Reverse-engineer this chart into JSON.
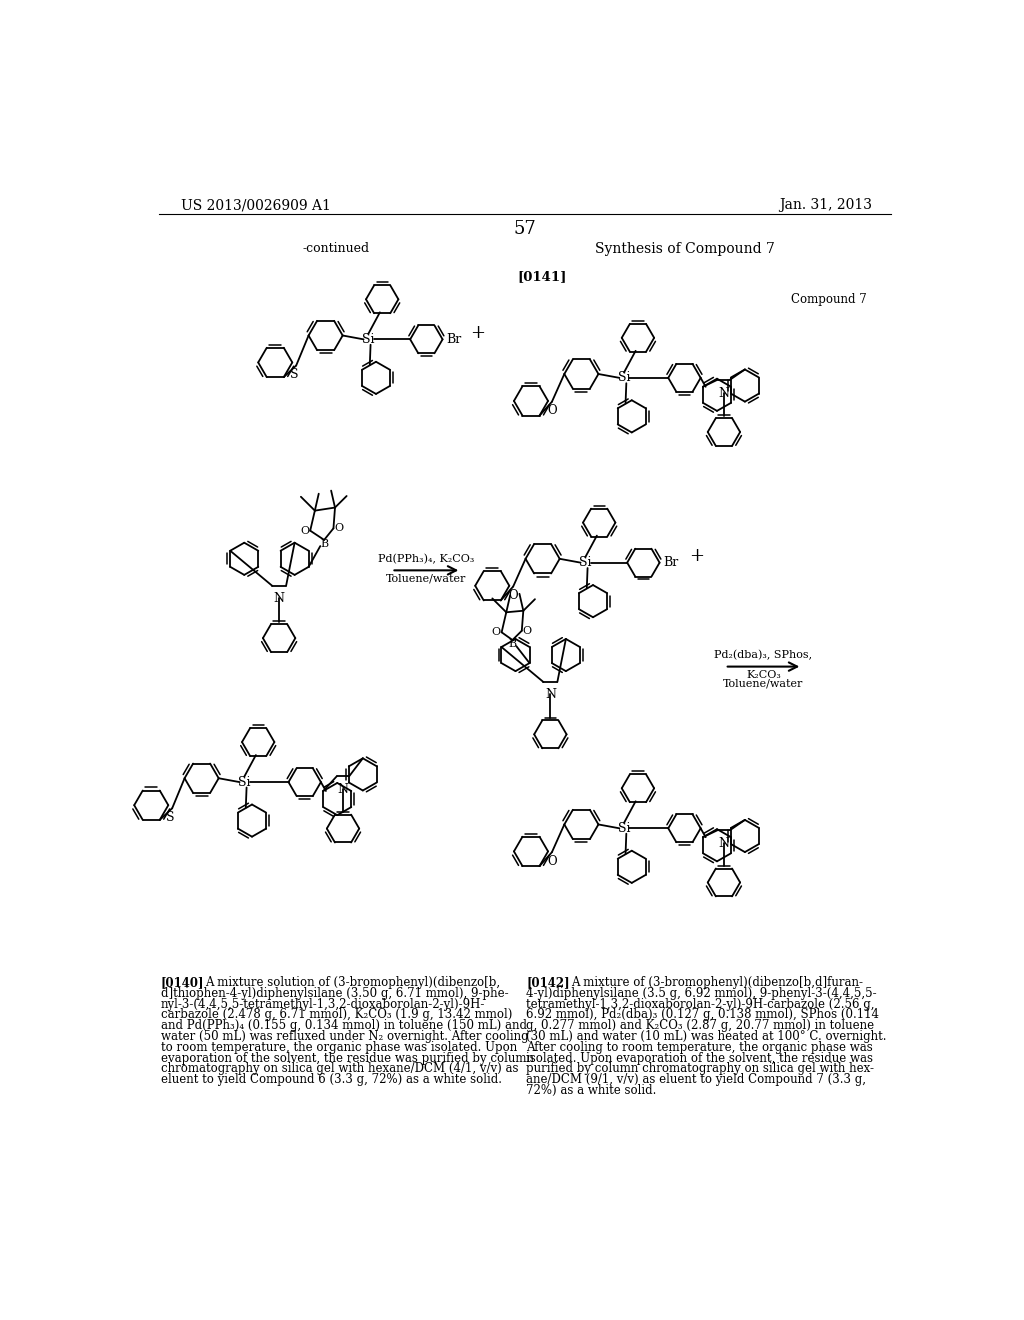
{
  "page_number": "57",
  "patent_number": "US 2013/0026909 A1",
  "patent_date": "Jan. 31, 2013",
  "background_color": "#ffffff",
  "continued_label": "-continued",
  "synthesis_title": "Synthesis of Compound 7",
  "compound7_label": "Compound 7",
  "lbl_0141": "[0141]",
  "lbl_0140": "[0140]",
  "lbl_0142": "[0142]",
  "arrow_left_line1": "Pd(PPh₃)₄, K₂CO₃",
  "arrow_left_line2": "Toluene/water",
  "arrow_right_line1": "Pd₂(dba)₃, SPhos,",
  "arrow_right_line2": "K₂CO₃",
  "arrow_right_line3": "Toluene/water",
  "para0140": "[0140]   A mixture solution of (3-bromophenyl)(dibenzo[b,d]thiophen-4-yl)diphenylsilane (3.50 g, 6.71 mmol), 9-phenyl-3-(4,4,5,5-tetramethyl-1,3,2-dioxaborolan-2-yl)-9H-carbazole (2.478 g, 6.71 mmol), K₂CO₃ (1.9 g, 13.42 mmol) and Pd(PPh₃)₄ (0.155 g, 0.134 mmol) in toluene (150 mL) and water (50 mL) was refluxed under N₂ overnight. After cooling to room temperature, the organic phase was isolated. Upon evaporation of the solvent, the residue was purified by column chromatography on silica gel with hexane/DCM (4/1, v/v) as eluent to yield Compound 6 (3.3 g, 72%) as a white solid.",
  "para0142": "[0142]   A mixture of (3-bromophenyl)(dibenzo[b,d]furan-4-yl)diphenylsilane (3.5 g, 6.92 mmol), 9-phenyl-3-(4,4,5,5-tetramethyl-1,3,2-dioxaborolan-2-yl)-9H-carbazole (2.56 g, 6.92 mmol), Pd₂(dba)₃ (0.127 g, 0.138 mmol), SPhos (0.114 g, 0.277 mmol) and K₂CO₃ (2.87 g, 20.77 mmol) in toluene (30 mL) and water (10 mL) was heated at 100° C. overnight. After cooling to room temperature, the organic phase was isolated. Upon evaporation of the solvent, the residue was purified by column chromatography on silica gel with hexane/DCM (9/1, v/v) as eluent to yield Compound 7 (3.3 g, 72%) as a white solid."
}
